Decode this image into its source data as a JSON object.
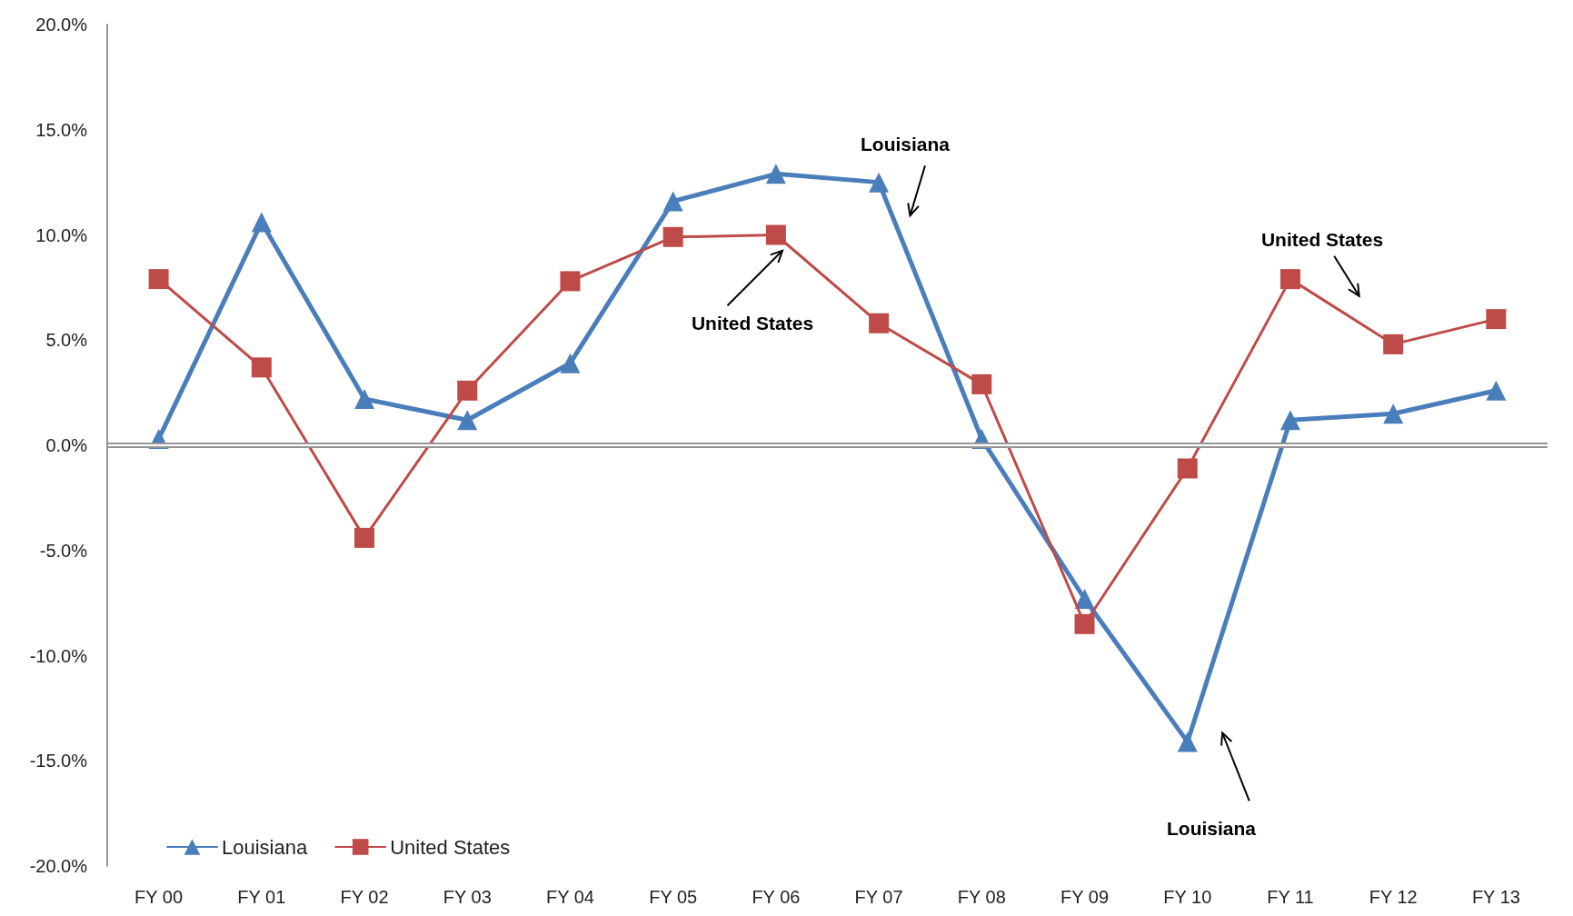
{
  "chart_data": {
    "type": "line",
    "categories": [
      "FY 00",
      "FY 01",
      "FY 02",
      "FY 03",
      "FY 04",
      "FY 05",
      "FY 06",
      "FY 07",
      "FY 08",
      "FY 09",
      "FY 10",
      "FY 11",
      "FY 12",
      "FY 13"
    ],
    "series": [
      {
        "name": "Louisiana",
        "color": "#4a7ebb",
        "marker": "triangle",
        "values": [
          0.3,
          10.6,
          2.2,
          1.2,
          3.9,
          11.6,
          12.9,
          12.5,
          0.3,
          -7.3,
          -14.1,
          1.2,
          1.5,
          2.6
        ]
      },
      {
        "name": "United States",
        "color": "#be4b48",
        "marker": "square",
        "values": [
          7.9,
          3.7,
          -4.4,
          2.6,
          7.8,
          9.9,
          10.0,
          5.8,
          2.9,
          -8.5,
          -1.1,
          7.9,
          4.8,
          6.0
        ]
      }
    ],
    "ylim": [
      -20,
      20
    ],
    "yticks": [
      {
        "value": -20,
        "label": "-20.0%"
      },
      {
        "value": -15,
        "label": "-15.0%"
      },
      {
        "value": -10,
        "label": "-10.0%"
      },
      {
        "value": -5,
        "label": "-5.0%"
      },
      {
        "value": 0,
        "label": "0.0%"
      },
      {
        "value": 5,
        "label": "5.0%"
      },
      {
        "value": 10,
        "label": "10.0%"
      },
      {
        "value": 15,
        "label": "15.0%"
      },
      {
        "value": 20,
        "label": "20.0%"
      }
    ],
    "ref_lines": [
      {
        "axis": "y",
        "value": 0,
        "color": "#969696"
      }
    ],
    "annotations": [
      "Louisiana",
      "United States",
      "United States",
      "Louisiana"
    ],
    "grid": false,
    "legend": "bottom left"
  }
}
